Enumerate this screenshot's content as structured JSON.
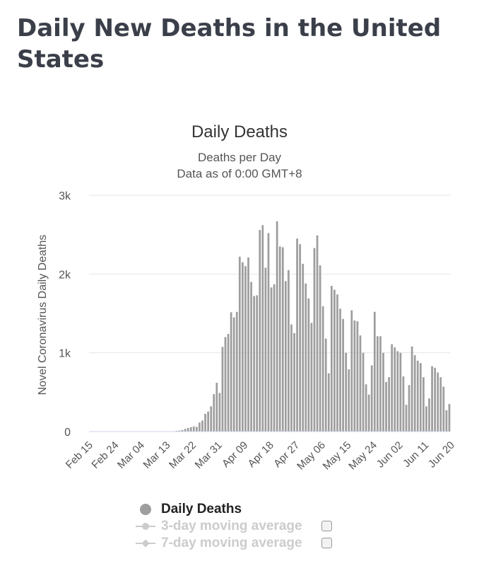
{
  "page": {
    "title": "Daily New Deaths in the United States"
  },
  "legend": {
    "items": [
      {
        "label": "Daily Deaths",
        "state": "active"
      },
      {
        "label": "3-day moving average",
        "state": "hidden"
      },
      {
        "label": "7-day moving average",
        "state": "hidden"
      }
    ]
  },
  "colors": {
    "bar": "#9e9e9e",
    "grid": "#e6e6e6",
    "axis_line": "#ccd6eb",
    "text": "#333333",
    "legend_disabled": "#cccccc",
    "title": "#3b3f4a"
  },
  "chart_data": {
    "type": "bar",
    "title": "Daily Deaths",
    "subtitle": [
      "Deaths per Day",
      "Data as of 0:00 GMT+8"
    ],
    "ylabel": "Novel Coronavirus Daily Deaths",
    "xlabel": "",
    "ylim": [
      0,
      3000
    ],
    "yticks": [
      0,
      1000,
      2000,
      3000
    ],
    "ytick_labels": [
      "0",
      "1k",
      "2k",
      "3k"
    ],
    "xtick_labels": [
      "Feb 15",
      "Feb 24",
      "Mar 04",
      "Mar 13",
      "Mar 22",
      "Mar 31",
      "Apr 09",
      "Apr 18",
      "Apr 27",
      "May 06",
      "May 15",
      "May 24",
      "Jun 02",
      "Jun 11",
      "Jun 20"
    ],
    "xtick_indices": [
      0,
      9,
      18,
      27,
      36,
      45,
      54,
      63,
      72,
      81,
      90,
      99,
      108,
      117,
      126
    ],
    "grid": true,
    "legend_position": "bottom",
    "series": [
      {
        "name": "Daily Deaths",
        "start_date": "Feb 15",
        "values": [
          0,
          0,
          0,
          0,
          0,
          0,
          0,
          0,
          0,
          0,
          0,
          0,
          0,
          0,
          0,
          0,
          1,
          0,
          0,
          1,
          1,
          0,
          0,
          0,
          0,
          0,
          2,
          3,
          3,
          4,
          9,
          13,
          20,
          34,
          45,
          55,
          66,
          60,
          115,
          140,
          225,
          255,
          320,
          475,
          620,
          490,
          1075,
          1200,
          1240,
          1515,
          1450,
          1520,
          2220,
          2150,
          2100,
          2210,
          1900,
          1720,
          1730,
          2560,
          2620,
          2080,
          2520,
          1830,
          1870,
          2670,
          2350,
          2340,
          1910,
          2050,
          1360,
          1250,
          2450,
          2380,
          2130,
          1880,
          1690,
          1380,
          2330,
          2490,
          2110,
          1590,
          1180,
          740,
          1850,
          1800,
          1740,
          1560,
          1430,
          1000,
          790,
          1540,
          1410,
          1400,
          1220,
          1000,
          600,
          470,
          840,
          1520,
          1210,
          1210,
          1000,
          630,
          690,
          1110,
          1070,
          1020,
          1000,
          700,
          340,
          590,
          1080,
          970,
          900,
          870,
          690,
          320,
          420,
          830,
          810,
          750,
          690,
          570,
          270,
          350
        ]
      }
    ]
  }
}
